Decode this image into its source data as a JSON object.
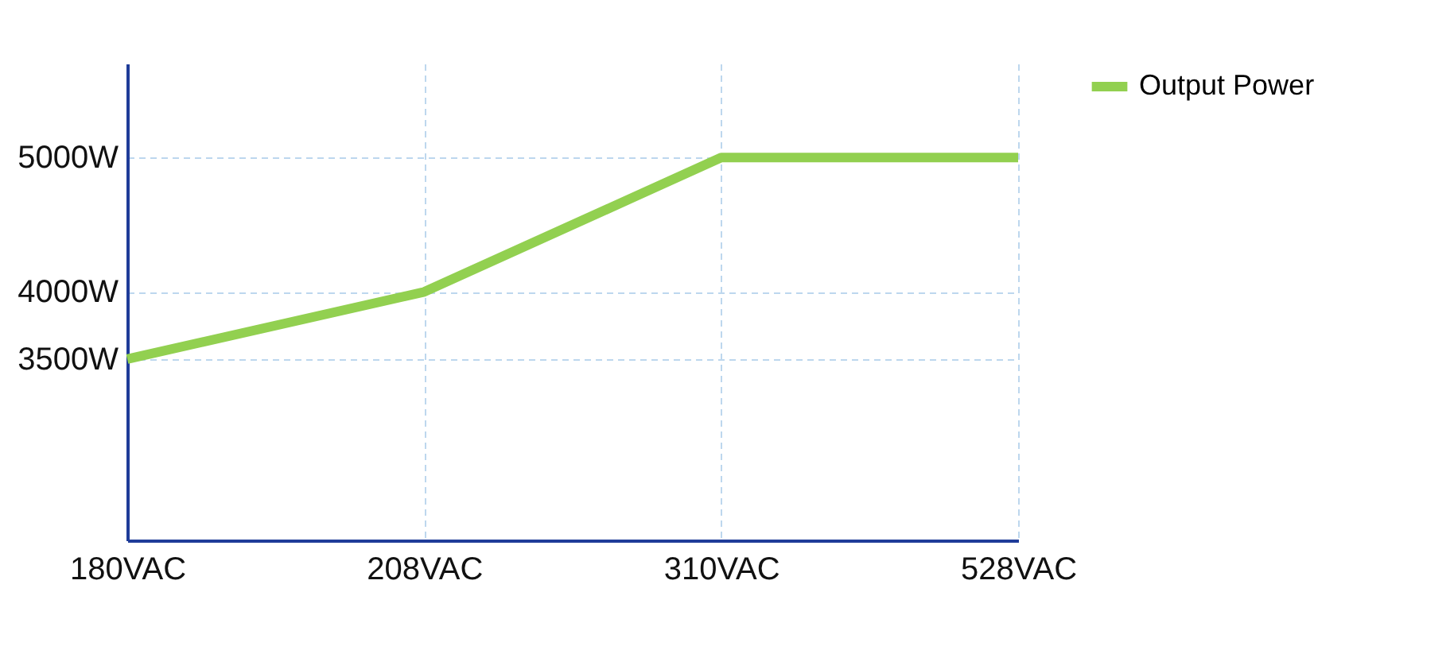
{
  "chart_data": {
    "type": "line",
    "categories": [
      "180VAC",
      "208VAC",
      "310VAC",
      "528VAC"
    ],
    "series": [
      {
        "name": "Output Power",
        "color": "#92d050",
        "values": [
          3500,
          4000,
          5000,
          5000
        ]
      }
    ],
    "ylim": [
      2150,
      5700
    ],
    "yticks": [
      {
        "value": 3500,
        "label": "3500W"
      },
      {
        "value": 4000,
        "label": "4000W"
      },
      {
        "value": 5000,
        "label": "5000W"
      }
    ],
    "grid": true,
    "legend": "top right",
    "line_style": "solid",
    "marker": "none"
  }
}
